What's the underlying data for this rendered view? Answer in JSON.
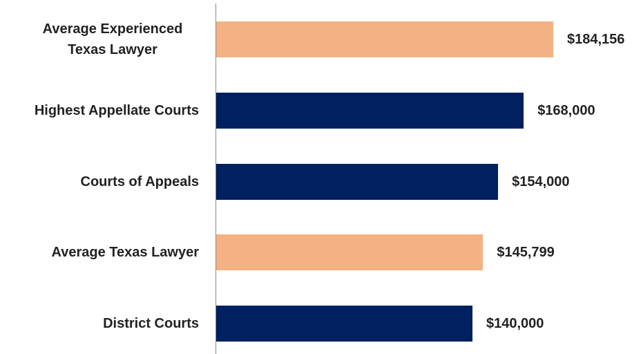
{
  "chart_data": {
    "type": "bar",
    "orientation": "horizontal",
    "categories": [
      "Average Experienced Texas Lawyer",
      "Highest Appellate Courts",
      "Courts of Appeals",
      "Average Texas Lawyer",
      "District Courts"
    ],
    "values": [
      184156,
      168000,
      154000,
      145799,
      140000
    ],
    "value_labels": [
      "$184,156",
      "$168,000",
      "$154,000",
      "$145,799",
      "$140,000"
    ],
    "colors": [
      "#f4b183",
      "#002060",
      "#002060",
      "#f4b183",
      "#002060"
    ]
  }
}
